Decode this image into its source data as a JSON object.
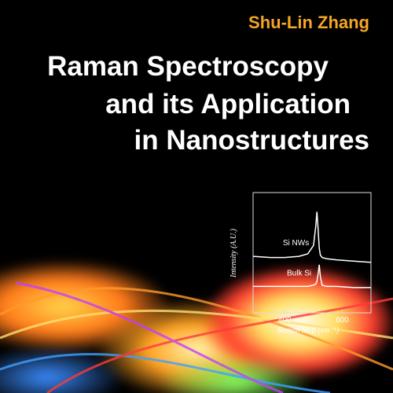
{
  "cover": {
    "author": "Shu-Lin Zhang",
    "title": [
      "Raman Spectroscopy",
      "and its Application",
      "in Nanostructures"
    ]
  },
  "chart_data": {
    "type": "line",
    "x_label": "Raman Shift (cm⁻¹)",
    "y_label": "Intensity (A.U.)",
    "xlim": [
      290,
      700
    ],
    "xticks": [
      400,
      600
    ],
    "ylim": [
      0,
      10
    ],
    "x": [
      290,
      350,
      400,
      450,
      480,
      500,
      508,
      512,
      516,
      520,
      524,
      530,
      545,
      580,
      640,
      700
    ],
    "series": [
      {
        "name": "Si NWs",
        "color": "#ffffff",
        "values": [
          4.7,
          4.6,
          4.6,
          4.7,
          4.9,
          5.6,
          7.2,
          8.4,
          7.0,
          5.4,
          4.8,
          4.6,
          4.5,
          4.4,
          4.3,
          4.2
        ]
      },
      {
        "name": "Bulk Si",
        "color": "#ffffff",
        "values": [
          2.2,
          2.2,
          2.2,
          2.2,
          2.2,
          2.3,
          2.4,
          2.6,
          3.2,
          4.0,
          3.0,
          2.3,
          2.2,
          2.2,
          2.1,
          2.1
        ]
      }
    ]
  }
}
